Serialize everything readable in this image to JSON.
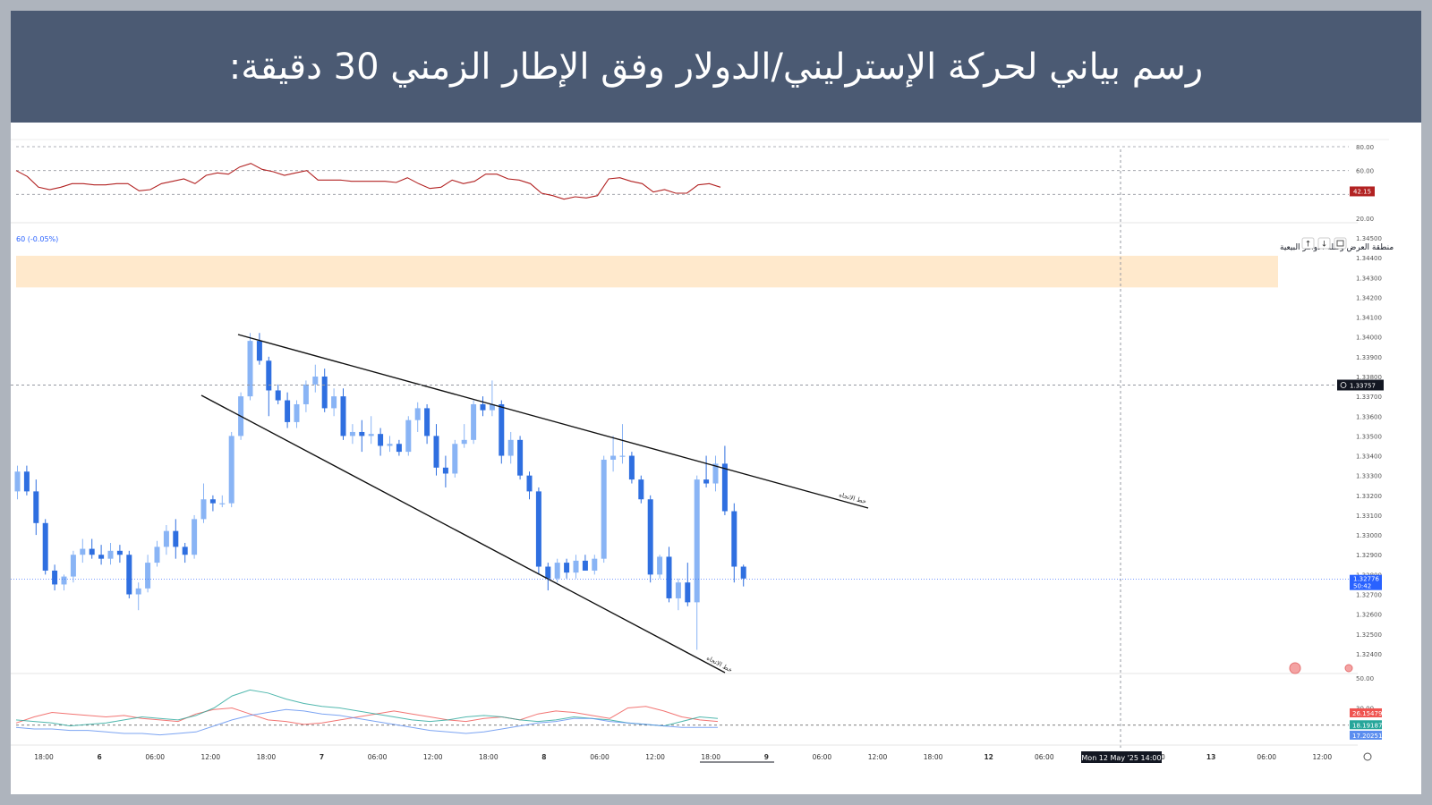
{
  "header": {
    "title": "رسم بياني لحركة الإسترليني/الدولار وفق الإطار الزمني 30 دقيقة:"
  },
  "chart_data": {
    "type": "candlestick",
    "symbol_label": "60 (-0.05%)",
    "zone": {
      "label": "منطقة العرض وكتلة الاوامر البيعية",
      "from": 1.3425,
      "to": 1.3441,
      "color": "#ffe9cc"
    },
    "trendline_label": "خط الاتجاه",
    "crosshair": {
      "time_label": "Mon 12 May '25   14:00",
      "price_label": "1.33757",
      "price": 1.33757
    },
    "last_price": {
      "price": 1.32776,
      "label": "1.32776",
      "countdown": "50:42"
    },
    "price_axis": {
      "min": 1.3235,
      "max": 1.345,
      "ticks": [
        "1.34500",
        "1.34400",
        "1.34300",
        "1.34200",
        "1.34100",
        "1.34000",
        "1.33900",
        "1.33800",
        "1.33700",
        "1.33600",
        "1.33500",
        "1.33400",
        "1.33300",
        "1.33200",
        "1.33100",
        "1.33000",
        "1.32900",
        "1.32800",
        "1.32700",
        "1.32600",
        "1.32500",
        "1.32400"
      ]
    },
    "time_axis": {
      "labels": [
        "18:00",
        "6",
        "06:00",
        "12:00",
        "18:00",
        "7",
        "06:00",
        "12:00",
        "18:00",
        "8",
        "06:00",
        "12:00",
        "18:00",
        "9",
        "06:00",
        "12:00",
        "18:00",
        "12",
        "06:00",
        "12:00",
        "18:00",
        "13",
        "06:00",
        "12:00"
      ]
    },
    "candles": [
      {
        "o": 1.3322,
        "h": 1.3335,
        "l": 1.3318,
        "c": 1.3332
      },
      {
        "o": 1.3332,
        "h": 1.3335,
        "l": 1.332,
        "c": 1.3322
      },
      {
        "o": 1.3322,
        "h": 1.3328,
        "l": 1.33,
        "c": 1.3306
      },
      {
        "o": 1.3306,
        "h": 1.3308,
        "l": 1.328,
        "c": 1.3282
      },
      {
        "o": 1.3282,
        "h": 1.3285,
        "l": 1.3272,
        "c": 1.3275
      },
      {
        "o": 1.3275,
        "h": 1.328,
        "l": 1.3272,
        "c": 1.3279
      },
      {
        "o": 1.3279,
        "h": 1.3292,
        "l": 1.3276,
        "c": 1.329
      },
      {
        "o": 1.329,
        "h": 1.3298,
        "l": 1.3286,
        "c": 1.3293
      },
      {
        "o": 1.3293,
        "h": 1.3298,
        "l": 1.3288,
        "c": 1.329
      },
      {
        "o": 1.329,
        "h": 1.3295,
        "l": 1.3285,
        "c": 1.3288
      },
      {
        "o": 1.3288,
        "h": 1.3296,
        "l": 1.3285,
        "c": 1.3292
      },
      {
        "o": 1.3292,
        "h": 1.3295,
        "l": 1.3286,
        "c": 1.329
      },
      {
        "o": 1.329,
        "h": 1.3292,
        "l": 1.3268,
        "c": 1.327
      },
      {
        "o": 1.327,
        "h": 1.3276,
        "l": 1.3262,
        "c": 1.3273
      },
      {
        "o": 1.3273,
        "h": 1.329,
        "l": 1.3271,
        "c": 1.3286
      },
      {
        "o": 1.3286,
        "h": 1.3297,
        "l": 1.3284,
        "c": 1.3294
      },
      {
        "o": 1.3294,
        "h": 1.3305,
        "l": 1.329,
        "c": 1.3302
      },
      {
        "o": 1.3302,
        "h": 1.3308,
        "l": 1.3288,
        "c": 1.3294
      },
      {
        "o": 1.3294,
        "h": 1.3296,
        "l": 1.3286,
        "c": 1.329
      },
      {
        "o": 1.329,
        "h": 1.331,
        "l": 1.3288,
        "c": 1.3308
      },
      {
        "o": 1.3308,
        "h": 1.3326,
        "l": 1.3306,
        "c": 1.3318
      },
      {
        "o": 1.3318,
        "h": 1.332,
        "l": 1.3312,
        "c": 1.3316
      },
      {
        "o": 1.3316,
        "h": 1.332,
        "l": 1.3314,
        "c": 1.3316
      },
      {
        "o": 1.3316,
        "h": 1.3352,
        "l": 1.3314,
        "c": 1.335
      },
      {
        "o": 1.335,
        "h": 1.3372,
        "l": 1.3348,
        "c": 1.337
      },
      {
        "o": 1.337,
        "h": 1.3402,
        "l": 1.3368,
        "c": 1.3398
      },
      {
        "o": 1.3398,
        "h": 1.3402,
        "l": 1.3386,
        "c": 1.3388
      },
      {
        "o": 1.3388,
        "h": 1.339,
        "l": 1.336,
        "c": 1.3373
      },
      {
        "o": 1.3373,
        "h": 1.3376,
        "l": 1.3366,
        "c": 1.3368
      },
      {
        "o": 1.3368,
        "h": 1.3372,
        "l": 1.3354,
        "c": 1.3357
      },
      {
        "o": 1.3357,
        "h": 1.3368,
        "l": 1.3354,
        "c": 1.3366
      },
      {
        "o": 1.3366,
        "h": 1.3378,
        "l": 1.3362,
        "c": 1.3376
      },
      {
        "o": 1.3376,
        "h": 1.3386,
        "l": 1.3372,
        "c": 1.338
      },
      {
        "o": 1.338,
        "h": 1.3384,
        "l": 1.3362,
        "c": 1.3364
      },
      {
        "o": 1.3364,
        "h": 1.3374,
        "l": 1.336,
        "c": 1.337
      },
      {
        "o": 1.337,
        "h": 1.3374,
        "l": 1.3348,
        "c": 1.335
      },
      {
        "o": 1.335,
        "h": 1.3356,
        "l": 1.3346,
        "c": 1.3352
      },
      {
        "o": 1.3352,
        "h": 1.3358,
        "l": 1.3342,
        "c": 1.335
      },
      {
        "o": 1.335,
        "h": 1.336,
        "l": 1.3346,
        "c": 1.3351
      },
      {
        "o": 1.3351,
        "h": 1.3354,
        "l": 1.334,
        "c": 1.3345
      },
      {
        "o": 1.3345,
        "h": 1.335,
        "l": 1.3342,
        "c": 1.3346
      },
      {
        "o": 1.3346,
        "h": 1.3348,
        "l": 1.334,
        "c": 1.3342
      },
      {
        "o": 1.3342,
        "h": 1.336,
        "l": 1.334,
        "c": 1.3358
      },
      {
        "o": 1.3358,
        "h": 1.3367,
        "l": 1.3352,
        "c": 1.3364
      },
      {
        "o": 1.3364,
        "h": 1.3366,
        "l": 1.3346,
        "c": 1.335
      },
      {
        "o": 1.335,
        "h": 1.3356,
        "l": 1.333,
        "c": 1.3334
      },
      {
        "o": 1.3334,
        "h": 1.334,
        "l": 1.3324,
        "c": 1.3331
      },
      {
        "o": 1.3331,
        "h": 1.3348,
        "l": 1.3329,
        "c": 1.3346
      },
      {
        "o": 1.3346,
        "h": 1.3356,
        "l": 1.3344,
        "c": 1.3348
      },
      {
        "o": 1.3348,
        "h": 1.3368,
        "l": 1.3346,
        "c": 1.3366
      },
      {
        "o": 1.3366,
        "h": 1.337,
        "l": 1.336,
        "c": 1.3363
      },
      {
        "o": 1.3363,
        "h": 1.3378,
        "l": 1.336,
        "c": 1.3366
      },
      {
        "o": 1.3366,
        "h": 1.3368,
        "l": 1.3336,
        "c": 1.334
      },
      {
        "o": 1.334,
        "h": 1.3352,
        "l": 1.3336,
        "c": 1.3348
      },
      {
        "o": 1.3348,
        "h": 1.335,
        "l": 1.3328,
        "c": 1.333
      },
      {
        "o": 1.333,
        "h": 1.3332,
        "l": 1.3318,
        "c": 1.3322
      },
      {
        "o": 1.3322,
        "h": 1.3324,
        "l": 1.328,
        "c": 1.3284
      },
      {
        "o": 1.3284,
        "h": 1.3286,
        "l": 1.3272,
        "c": 1.3278
      },
      {
        "o": 1.3278,
        "h": 1.3288,
        "l": 1.3276,
        "c": 1.3286
      },
      {
        "o": 1.3286,
        "h": 1.3288,
        "l": 1.3278,
        "c": 1.3281
      },
      {
        "o": 1.3281,
        "h": 1.329,
        "l": 1.3278,
        "c": 1.3287
      },
      {
        "o": 1.3287,
        "h": 1.329,
        "l": 1.3282,
        "c": 1.3282
      },
      {
        "o": 1.3282,
        "h": 1.329,
        "l": 1.328,
        "c": 1.3288
      },
      {
        "o": 1.3288,
        "h": 1.334,
        "l": 1.3286,
        "c": 1.3338
      },
      {
        "o": 1.3338,
        "h": 1.335,
        "l": 1.3332,
        "c": 1.334
      },
      {
        "o": 1.334,
        "h": 1.3356,
        "l": 1.3336,
        "c": 1.334
      },
      {
        "o": 1.334,
        "h": 1.3342,
        "l": 1.3326,
        "c": 1.3328
      },
      {
        "o": 1.3328,
        "h": 1.333,
        "l": 1.3316,
        "c": 1.3318
      },
      {
        "o": 1.3318,
        "h": 1.332,
        "l": 1.3276,
        "c": 1.328
      },
      {
        "o": 1.328,
        "h": 1.329,
        "l": 1.3278,
        "c": 1.3289
      },
      {
        "o": 1.3289,
        "h": 1.3294,
        "l": 1.3266,
        "c": 1.3268
      },
      {
        "o": 1.3268,
        "h": 1.3278,
        "l": 1.3262,
        "c": 1.3276
      },
      {
        "o": 1.3276,
        "h": 1.3286,
        "l": 1.3264,
        "c": 1.3266
      },
      {
        "o": 1.3266,
        "h": 1.333,
        "l": 1.3242,
        "c": 1.3328
      },
      {
        "o": 1.3328,
        "h": 1.334,
        "l": 1.3324,
        "c": 1.3326
      },
      {
        "o": 1.3326,
        "h": 1.334,
        "l": 1.3322,
        "c": 1.3336
      },
      {
        "o": 1.3336,
        "h": 1.3345,
        "l": 1.331,
        "c": 1.3312
      },
      {
        "o": 1.3312,
        "h": 1.3316,
        "l": 1.3276,
        "c": 1.3284
      },
      {
        "o": 1.3284,
        "h": 1.3285,
        "l": 1.3274,
        "c": 1.3278
      }
    ],
    "rsi": {
      "value_label": "42.15",
      "min": 20,
      "max": 80,
      "levels": [
        80,
        60,
        40
      ],
      "ticks": [
        "80.00",
        "60.00",
        "20.00"
      ],
      "values": [
        60,
        55,
        46,
        44,
        46,
        49,
        49,
        48,
        48,
        49,
        49,
        43,
        44,
        49,
        51,
        53,
        49,
        56,
        58,
        57,
        63,
        66,
        61,
        59,
        56,
        58,
        60,
        52,
        52,
        52,
        51,
        51,
        51,
        51,
        50,
        54,
        49,
        45,
        46,
        52,
        49,
        51,
        57,
        57,
        53,
        52,
        49,
        41,
        39,
        36,
        38,
        37,
        39,
        53,
        54,
        51,
        49,
        42,
        44,
        41,
        41,
        48,
        49,
        46
      ]
    },
    "adx": {
      "ticks": [
        "50.00",
        "30.00"
      ],
      "labels": [
        "26.15479",
        "18.19187",
        "17.20251"
      ],
      "colors": [
        "#ef5350",
        "#26a69a",
        "#5b8def"
      ],
      "plus_di": [
        20,
        24,
        27,
        26,
        25,
        24,
        25,
        23,
        22,
        21,
        26,
        29,
        30,
        26,
        22,
        21,
        19,
        20,
        22,
        24,
        26,
        28,
        26,
        24,
        22,
        21,
        23,
        24,
        22,
        26,
        28,
        27,
        25,
        23,
        30,
        31,
        28,
        24,
        22,
        21
      ],
      "minus_di": [
        22,
        21,
        20,
        18,
        19,
        20,
        22,
        24,
        23,
        22,
        25,
        30,
        38,
        42,
        40,
        36,
        33,
        31,
        30,
        28,
        26,
        24,
        22,
        21,
        22,
        24,
        25,
        24,
        22,
        21,
        22,
        24,
        23,
        22,
        20,
        19,
        18,
        21,
        24,
        23
      ],
      "adx": [
        17,
        16,
        16,
        15,
        15,
        14,
        13,
        13,
        12,
        13,
        14,
        18,
        22,
        25,
        27,
        29,
        28,
        26,
        25,
        23,
        21,
        19,
        17,
        15,
        14,
        13,
        14,
        16,
        18,
        20,
        21,
        23,
        23,
        21,
        20,
        19,
        18,
        17,
        17,
        17
      ]
    }
  }
}
